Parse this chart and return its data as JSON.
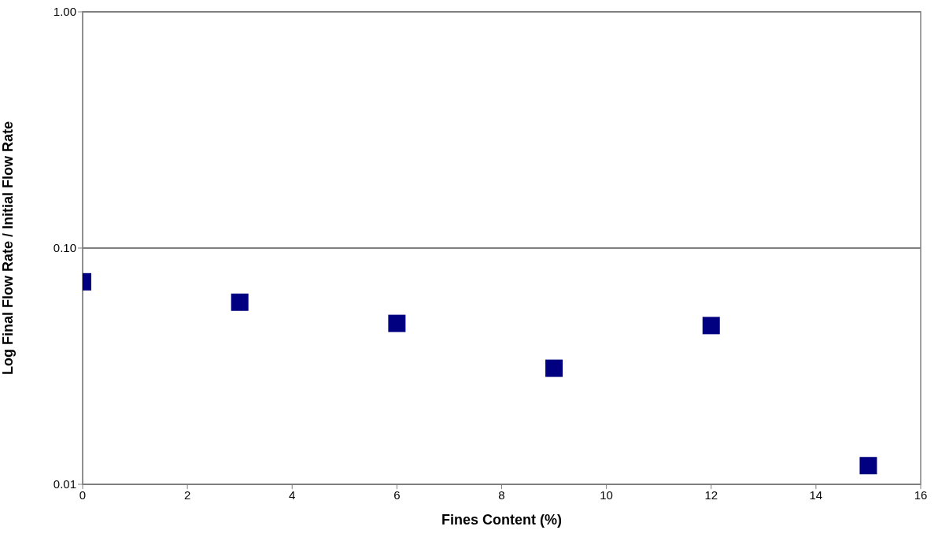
{
  "chart_data": {
    "type": "scatter",
    "xlabel": "Fines Content (%)",
    "ylabel": "Log Final Flow Rate / Initial Flow Rate",
    "x": [
      0,
      3,
      6,
      9,
      12,
      15
    ],
    "series": [
      {
        "color": "#000080",
        "values": [
          0.072,
          0.059,
          0.048,
          0.031,
          0.047,
          0.012
        ]
      }
    ],
    "xlim": [
      0,
      16
    ],
    "xticks": [
      0,
      2,
      4,
      6,
      8,
      10,
      12,
      14,
      16
    ],
    "ylim": [
      0.01,
      1
    ],
    "yticks": [
      {
        "value": 0.01,
        "label": "0.01"
      },
      {
        "value": 0.1,
        "label": "0.10"
      },
      {
        "value": 1,
        "label": "1.00"
      }
    ],
    "log": "y",
    "grid": "y",
    "marker": "square"
  }
}
